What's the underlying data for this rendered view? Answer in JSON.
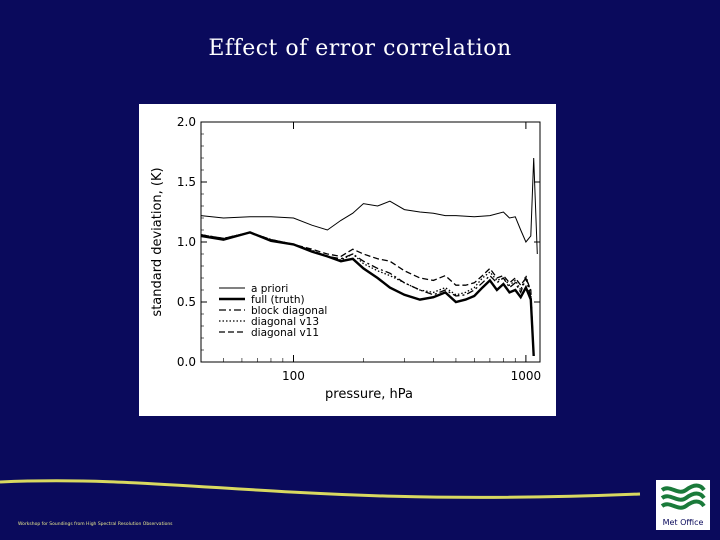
{
  "slide": {
    "title": "Effect of error correlation",
    "footer_text": "Workshop for Soundings from High Spectral Resolution Observations",
    "logo_text": "Met Office"
  },
  "colors": {
    "background": "#0a0a5c",
    "footer_line": "#d8d860",
    "chart_bg": "#ffffff",
    "ink": "#000000"
  },
  "chart_data": {
    "type": "line",
    "x_scale": "log",
    "xlabel": "pressure, hPa",
    "ylabel": "standard deviation, (K)",
    "xlim": [
      40,
      1150
    ],
    "ylim": [
      0.0,
      2.0
    ],
    "x_ticks": [
      100,
      1000
    ],
    "y_ticks": [
      "0.0",
      "0.5",
      "1.0",
      "1.5",
      "2.0"
    ],
    "legend_position": "lower-left",
    "series": [
      {
        "name": "a priori",
        "style": "thin-solid",
        "x": [
          40,
          50,
          65,
          80,
          100,
          120,
          140,
          160,
          180,
          200,
          230,
          260,
          300,
          350,
          400,
          450,
          500,
          600,
          700,
          800,
          850,
          900,
          950,
          1000,
          1050,
          1080,
          1100,
          1120
        ],
        "y": [
          1.22,
          1.2,
          1.21,
          1.21,
          1.2,
          1.14,
          1.1,
          1.18,
          1.24,
          1.32,
          1.3,
          1.34,
          1.27,
          1.25,
          1.24,
          1.22,
          1.22,
          1.21,
          1.22,
          1.25,
          1.2,
          1.21,
          1.1,
          1.0,
          1.05,
          1.7,
          1.3,
          0.9
        ]
      },
      {
        "name": "full (truth)",
        "style": "thick-solid",
        "x": [
          40,
          50,
          65,
          80,
          100,
          120,
          140,
          160,
          180,
          200,
          230,
          260,
          300,
          350,
          400,
          450,
          500,
          550,
          600,
          650,
          700,
          750,
          800,
          850,
          900,
          950,
          1000,
          1050,
          1080
        ],
        "y": [
          1.05,
          1.02,
          1.08,
          1.01,
          0.98,
          0.92,
          0.88,
          0.84,
          0.86,
          0.78,
          0.7,
          0.62,
          0.56,
          0.52,
          0.54,
          0.58,
          0.5,
          0.52,
          0.55,
          0.62,
          0.68,
          0.6,
          0.65,
          0.58,
          0.6,
          0.54,
          0.62,
          0.52,
          0.05
        ]
      },
      {
        "name": "block diagonal",
        "style": "dash-dot",
        "x": [
          40,
          50,
          65,
          80,
          100,
          120,
          140,
          160,
          180,
          200,
          230,
          260,
          300,
          350,
          400,
          450,
          500,
          550,
          600,
          650,
          700,
          750,
          800,
          850,
          900,
          950,
          1000,
          1050,
          1080
        ],
        "y": [
          1.06,
          1.03,
          1.08,
          1.02,
          0.98,
          0.93,
          0.88,
          0.86,
          0.9,
          0.84,
          0.78,
          0.74,
          0.66,
          0.6,
          0.56,
          0.6,
          0.55,
          0.56,
          0.6,
          0.66,
          0.72,
          0.66,
          0.7,
          0.62,
          0.66,
          0.58,
          0.7,
          0.54,
          0.06
        ]
      },
      {
        "name": "diagonal v13",
        "style": "dotted",
        "x": [
          40,
          50,
          65,
          80,
          100,
          120,
          140,
          160,
          180,
          200,
          230,
          260,
          300,
          350,
          400,
          450,
          500,
          550,
          600,
          650,
          700,
          750,
          800,
          850,
          900,
          950,
          1000,
          1050,
          1080
        ],
        "y": [
          1.06,
          1.03,
          1.08,
          1.02,
          0.98,
          0.93,
          0.88,
          0.85,
          0.9,
          0.82,
          0.76,
          0.72,
          0.66,
          0.6,
          0.58,
          0.62,
          0.56,
          0.58,
          0.62,
          0.7,
          0.75,
          0.68,
          0.7,
          0.64,
          0.68,
          0.6,
          0.72,
          0.58,
          0.06
        ]
      },
      {
        "name": "diagonal v11",
        "style": "dashed",
        "x": [
          40,
          50,
          65,
          80,
          100,
          120,
          140,
          160,
          180,
          200,
          230,
          260,
          300,
          350,
          400,
          450,
          500,
          550,
          600,
          650,
          700,
          750,
          800,
          850,
          900,
          950,
          1000,
          1050,
          1080
        ],
        "y": [
          1.06,
          1.03,
          1.08,
          1.02,
          0.98,
          0.94,
          0.9,
          0.88,
          0.94,
          0.9,
          0.86,
          0.84,
          0.76,
          0.7,
          0.68,
          0.72,
          0.64,
          0.64,
          0.66,
          0.72,
          0.78,
          0.7,
          0.72,
          0.66,
          0.7,
          0.64,
          0.7,
          0.6,
          0.06
        ]
      }
    ]
  }
}
